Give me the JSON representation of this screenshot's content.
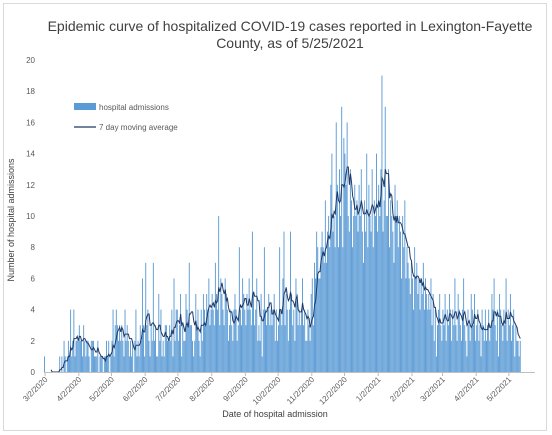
{
  "chart_data": {
    "type": "bar",
    "title": "Epidemic curve of hospitalized COVID-19 cases reported in Lexington-Fayette County, as of 5/25/2021",
    "title_lines": [
      "Epidemic curve of hospitalized COVID-19 cases reported in Lexington-Fayette",
      "County, as of 5/25/2021"
    ],
    "xlabel": "Date of hospital admission",
    "ylabel": "Number of hospital admissions",
    "ylim": [
      0,
      20
    ],
    "yticks": [
      0,
      2,
      4,
      6,
      8,
      10,
      12,
      14,
      16,
      18,
      20
    ],
    "xrange": [
      "2020-03-01",
      "2021-05-25"
    ],
    "xticks": [
      "3/2/2020",
      "4/2/2020",
      "5/2/2020",
      "6/2/2020",
      "7/2/2020",
      "8/2/2020",
      "9/2/2020",
      "10/2/2020",
      "11/2/2020",
      "12/2/2020",
      "1/2/2021",
      "2/2/2021",
      "3/2/2021",
      "4/2/2021",
      "5/2/2021"
    ],
    "legend": {
      "placement": "top-left",
      "entries": [
        "hospital admissions",
        "7 day moving average"
      ]
    },
    "colors": {
      "bars": "#5b9bd5",
      "line": "#203864"
    },
    "grid": false,
    "series": [
      {
        "name": "hospital admissions",
        "kind": "bar",
        "values_note": "daily values, one per day starting 2020-03-01",
        "values": [
          1,
          0,
          0,
          0,
          0,
          0,
          0,
          0,
          0,
          0,
          0,
          0,
          0,
          0,
          1,
          0,
          1,
          0,
          2,
          1,
          0,
          1,
          2,
          1,
          4,
          1,
          2,
          4,
          1,
          2,
          2,
          2,
          3,
          2,
          2,
          1,
          3,
          2,
          1,
          2,
          2,
          1,
          0,
          2,
          2,
          2,
          1,
          1,
          1,
          2,
          0,
          1,
          1,
          1,
          0,
          1,
          1,
          2,
          1,
          2,
          0,
          1,
          2,
          4,
          1,
          3,
          4,
          3,
          2,
          3,
          2,
          3,
          2,
          1,
          4,
          2,
          3,
          2,
          1,
          2,
          1,
          2,
          0,
          2,
          4,
          1,
          2,
          1,
          3,
          2,
          6,
          3,
          1,
          7,
          3,
          4,
          2,
          1,
          3,
          2,
          7,
          2,
          3,
          1,
          1,
          5,
          2,
          4,
          1,
          2,
          1,
          3,
          3,
          2,
          2,
          3,
          2,
          4,
          1,
          6,
          2,
          4,
          4,
          2,
          3,
          5,
          1,
          3,
          2,
          2,
          5,
          4,
          3,
          7,
          3,
          3,
          2,
          1,
          2,
          5,
          3,
          4,
          2,
          1,
          4,
          2,
          5,
          4,
          3,
          5,
          4,
          6,
          3,
          4,
          5,
          4,
          3,
          7,
          5,
          4,
          10,
          3,
          6,
          5,
          4,
          3,
          6,
          5,
          4,
          2,
          3,
          4,
          3,
          2,
          4,
          5,
          4,
          2,
          3,
          8,
          4,
          3,
          6,
          5,
          4,
          3,
          5,
          4,
          6,
          4,
          3,
          9,
          5,
          3,
          4,
          6,
          2,
          3,
          2,
          5,
          1,
          4,
          8,
          4,
          3,
          4,
          5,
          3,
          4,
          3,
          4,
          5,
          2,
          4,
          2,
          3,
          8,
          4,
          3,
          6,
          9,
          3,
          5,
          4,
          2,
          4,
          9,
          5,
          3,
          4,
          2,
          6,
          5,
          3,
          4,
          3,
          4,
          6,
          3,
          4,
          2,
          2,
          4,
          3,
          2,
          5,
          6,
          3,
          7,
          6,
          9,
          8,
          6,
          6,
          8,
          9,
          8,
          7,
          11,
          7,
          9,
          10,
          8,
          12,
          14,
          9,
          10,
          8,
          16,
          12,
          8,
          13,
          10,
          17,
          8,
          15,
          14,
          12,
          16,
          10,
          9,
          13,
          11,
          8,
          10,
          12,
          10,
          11,
          9,
          12,
          10,
          13,
          9,
          7,
          11,
          9,
          14,
          8,
          12,
          10,
          9,
          13,
          8,
          11,
          10,
          14,
          9,
          12,
          10,
          13,
          19,
          9,
          11,
          17,
          10,
          10,
          13,
          8,
          11,
          10,
          9,
          7,
          12,
          10,
          11,
          8,
          10,
          9,
          6,
          10,
          8,
          11,
          6,
          8,
          7,
          6,
          5,
          7,
          6,
          4,
          8,
          6,
          7,
          5,
          6,
          4,
          6,
          5,
          7,
          4,
          6,
          5,
          4,
          5,
          4,
          6,
          3,
          5,
          2,
          4,
          1,
          3,
          4,
          5,
          3,
          2,
          4,
          3,
          5,
          2,
          4,
          3,
          5,
          4,
          2,
          4,
          3,
          6,
          3,
          2,
          5,
          4,
          3,
          2,
          4,
          6,
          3,
          2,
          1,
          4,
          3,
          2,
          5,
          4,
          3,
          5,
          2,
          3,
          4,
          2,
          3,
          1,
          4,
          3,
          2,
          4,
          2,
          3,
          4,
          2,
          3,
          5,
          4,
          6,
          3,
          2,
          4,
          1,
          5,
          4,
          3,
          2,
          4,
          3,
          6,
          2,
          4,
          3,
          5,
          2,
          3,
          4,
          1,
          3,
          2,
          2,
          1,
          2
        ]
      },
      {
        "name": "7 day moving average",
        "kind": "line",
        "values_note": "computed as trailing 7-day average of the daily admissions"
      }
    ]
  }
}
